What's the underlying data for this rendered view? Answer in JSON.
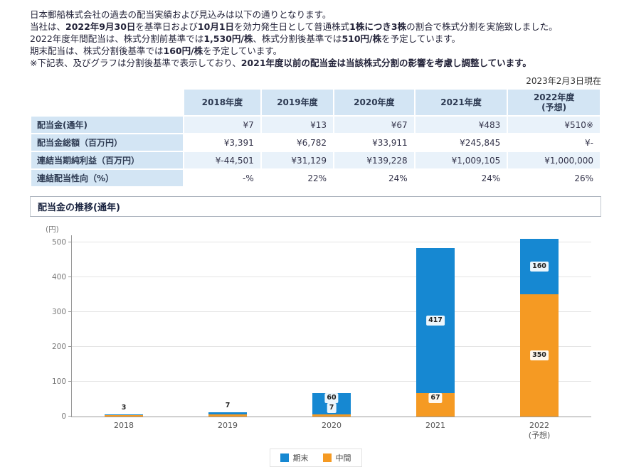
{
  "as_of": "2023年2月3日現在",
  "intro": {
    "lines": [
      [
        {
          "t": "日本郵船株式会社の過去の配当実績および見込みは以下の通りとなります。",
          "b": false
        }
      ],
      [
        {
          "t": "当社は、",
          "b": false
        },
        {
          "t": "2022年9月30日",
          "b": true
        },
        {
          "t": "を基準日および",
          "b": false
        },
        {
          "t": "10月1日",
          "b": true
        },
        {
          "t": "を効力発生日として普通株式",
          "b": false
        },
        {
          "t": "1株につき3株",
          "b": true
        },
        {
          "t": "の割合で株式分割を実施致しました。",
          "b": false
        }
      ],
      [
        {
          "t": "2022年度年間配当は、株式分割前基準では",
          "b": false
        },
        {
          "t": "1,530円/株",
          "b": true
        },
        {
          "t": "、株式分割後基準では",
          "b": false
        },
        {
          "t": "510円/株",
          "b": true
        },
        {
          "t": "を予定しています。",
          "b": false
        }
      ],
      [
        {
          "t": "期末配当は、株式分割後基準では",
          "b": false
        },
        {
          "t": "160円/株",
          "b": true
        },
        {
          "t": "を予定しています。",
          "b": false
        }
      ],
      [
        {
          "t": "※下記表、及びグラフは分割後基準で表示しており、",
          "b": false
        },
        {
          "t": "2021年度以前の配当金は当該株式分割の影響を考慮し調整しています。",
          "b": true
        }
      ]
    ]
  },
  "table": {
    "columns": [
      "2018年度",
      "2019年度",
      "2020年度",
      "2021年度",
      "2022年度\n(予想)"
    ],
    "rows": [
      {
        "label": "配当金(通年)",
        "values": [
          "¥7",
          "¥13",
          "¥67",
          "¥483",
          "¥510※"
        ]
      },
      {
        "label": "配当金総額（百万円）",
        "values": [
          "¥3,391",
          "¥6,782",
          "¥33,911",
          "¥245,845",
          "¥-"
        ]
      },
      {
        "label": "連結当期純利益（百万円）",
        "values": [
          "¥-44,501",
          "¥31,129",
          "¥139,228",
          "¥1,009,105",
          "¥1,000,000"
        ]
      },
      {
        "label": "連結配当性向（%）",
        "values": [
          "-%",
          "22%",
          "24%",
          "24%",
          "26%"
        ]
      }
    ]
  },
  "chart_data": {
    "type": "bar",
    "stacked": true,
    "title": "配当金の推移(通年)",
    "ylabel": "(円)",
    "xlabel": "",
    "ylim": [
      0,
      520
    ],
    "yticks": [
      0,
      100,
      200,
      300,
      400,
      500
    ],
    "grid": true,
    "categories": [
      "2018",
      "2019",
      "2020",
      "2021",
      "2022\n(予想)"
    ],
    "series": [
      {
        "name": "中間",
        "color": "#f59a23",
        "values": [
          4,
          6,
          7,
          67,
          350
        ],
        "labels": [
          "",
          "",
          "7",
          "67",
          "350"
        ]
      },
      {
        "name": "期末",
        "color": "#1688d2",
        "values": [
          3,
          7,
          60,
          417,
          160
        ],
        "labels": [
          "3",
          "7",
          "60",
          "417",
          "160"
        ]
      }
    ],
    "totals": [
      7,
      13,
      67,
      483,
      510
    ],
    "legend": [
      {
        "label": "期末",
        "color": "#1688d2"
      },
      {
        "label": "中間",
        "color": "#f59a23"
      }
    ],
    "legend_position": "bottom"
  },
  "colors": {
    "accent_blue": "#1688d2",
    "accent_orange": "#f59a23",
    "table_header_bg": "#d3e5f4",
    "row_alt_bg": "#e9f2fa"
  }
}
